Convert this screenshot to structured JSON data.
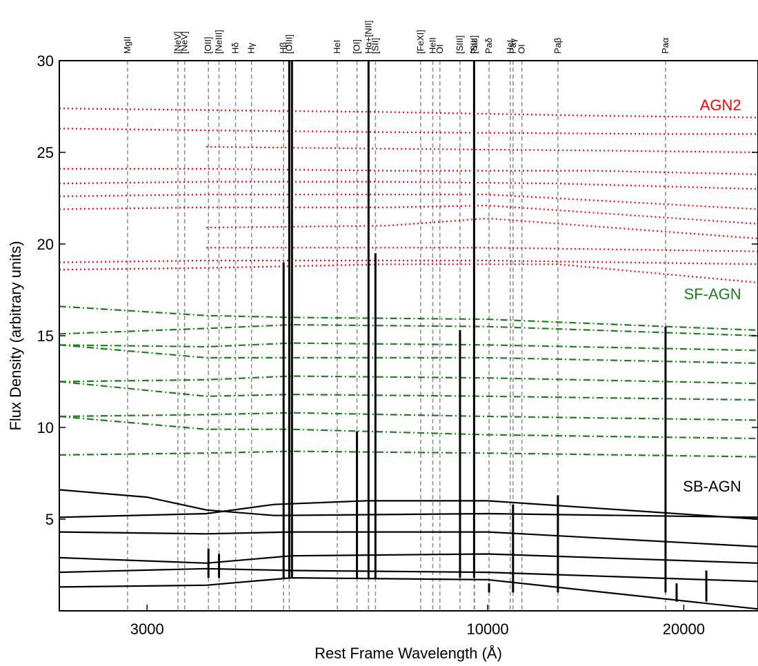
{
  "chart_data": {
    "type": "line",
    "xlabel": "Rest Frame Wavelength (Å)",
    "ylabel": "Flux Density (arbitrary units)",
    "xscale": "log",
    "xlim": [
      2200,
      26000
    ],
    "ylim": [
      0,
      30
    ],
    "xticks": [
      3000,
      10000,
      20000
    ],
    "xtick_labels": [
      "3000",
      "10000",
      "20000"
    ],
    "yticks": [
      5,
      10,
      15,
      20,
      25,
      30
    ],
    "ytick_labels": [
      "5",
      "10",
      "15",
      "20",
      "25",
      "30"
    ],
    "line_markers": [
      {
        "label": "MgII",
        "x": 2800
      },
      {
        "label": "[NeV]",
        "x": 3346
      },
      {
        "label": "[NeV]",
        "x": 3426
      },
      {
        "label": "[OII]",
        "x": 3727
      },
      {
        "label": "[NeIII]",
        "x": 3869
      },
      {
        "label": "Hδ",
        "x": 4102
      },
      {
        "label": "Hγ",
        "x": 4340
      },
      {
        "label": "Hβ",
        "x": 4861
      },
      {
        "label": "[OIII]",
        "x": 4959
      },
      {
        "label": "HeI",
        "x": 5876
      },
      {
        "label": "[OI]",
        "x": 6300
      },
      {
        "label": "Hα+[NII]",
        "x": 6563
      },
      {
        "label": "[SII]",
        "x": 6725
      },
      {
        "label": "[FeXI]",
        "x": 7892
      },
      {
        "label": "HeII",
        "x": 8237
      },
      {
        "label": "OI",
        "x": 8446
      },
      {
        "label": "[SIII]",
        "x": 9069
      },
      {
        "label": "[SIII]",
        "x": 9531
      },
      {
        "label": "Paε",
        "x": 9546
      },
      {
        "label": "Paδ",
        "x": 10049
      },
      {
        "label": "HeI",
        "x": 10830
      },
      {
        "label": "Paγ",
        "x": 10938
      },
      {
        "label": "OI",
        "x": 11287
      },
      {
        "label": "Paβ",
        "x": 12818
      },
      {
        "label": "Paα",
        "x": 18751
      }
    ],
    "marker_style": {
      "color": "#8c8c8c",
      "dash": "dashed"
    },
    "groups": [
      {
        "name": "AGN2",
        "color": "#ff0000",
        "linestyle": "dotted",
        "x_start": 2200,
        "x_end": 26000,
        "series": [
          {
            "x": [
              2200,
              3700,
              7000,
              14500,
              26000
            ],
            "y": [
              27.4,
              27.3,
              27.2,
              27.0,
              26.9
            ]
          },
          {
            "x": [
              2200,
              3700,
              7000,
              18900,
              26000
            ],
            "y": [
              26.3,
              26.2,
              26.1,
              26.0,
              26.0
            ]
          },
          {
            "x": [
              3700,
              7000,
              14500,
              26000
            ],
            "y": [
              25.3,
              25.2,
              25.1,
              25.0
            ]
          },
          {
            "x": [
              2200,
              3700,
              7000,
              14500,
              26000
            ],
            "y": [
              24.1,
              24.1,
              24.0,
              24.0,
              23.8
            ]
          },
          {
            "x": [
              2200,
              3700,
              7000,
              12800,
              26000
            ],
            "y": [
              23.3,
              23.4,
              23.4,
              23.3,
              23.0
            ]
          },
          {
            "x": [
              2200,
              3700,
              7000,
              10000,
              26000
            ],
            "y": [
              22.6,
              22.7,
              22.7,
              22.7,
              21.9
            ]
          },
          {
            "x": [
              2200,
              3700,
              7000,
              10000,
              26000
            ],
            "y": [
              21.9,
              22.0,
              22.0,
              22.1,
              21.1
            ]
          },
          {
            "x": [
              3700,
              7000,
              10000,
              26000
            ],
            "y": [
              20.9,
              21.0,
              21.4,
              20.3
            ]
          },
          {
            "x": [
              3700,
              7000,
              10000,
              26000
            ],
            "y": [
              19.8,
              19.8,
              19.8,
              19.6
            ]
          },
          {
            "x": [
              2200,
              3700,
              7000,
              10000,
              26000
            ],
            "y": [
              19.0,
              19.1,
              19.1,
              19.1,
              18.9
            ]
          },
          {
            "x": [
              2200,
              3700,
              7000,
              12800,
              26000
            ],
            "y": [
              18.6,
              18.7,
              18.9,
              18.9,
              17.9
            ]
          }
        ]
      },
      {
        "name": "SF-AGN",
        "color": "#1a801a",
        "linestyle": "dashdot",
        "series": [
          {
            "x": [
              2200,
              3700,
              5000,
              10000,
              26000
            ],
            "y": [
              16.6,
              16.1,
              16.0,
              15.9,
              15.3
            ]
          },
          {
            "x": [
              2200,
              3700,
              5000,
              10000,
              26000
            ],
            "y": [
              15.1,
              15.4,
              15.6,
              15.5,
              15.0
            ]
          },
          {
            "x": [
              2200,
              3700,
              5000,
              10000,
              26000
            ],
            "y": [
              14.5,
              14.4,
              14.6,
              14.5,
              14.2
            ]
          },
          {
            "x": [
              2200,
              3700,
              5000,
              10000,
              26000
            ],
            "y": [
              14.5,
              13.8,
              13.8,
              13.8,
              13.5
            ]
          },
          {
            "x": [
              2200,
              3700,
              5000,
              10000,
              26000
            ],
            "y": [
              12.5,
              12.6,
              12.8,
              12.7,
              12.4
            ]
          },
          {
            "x": [
              2200,
              3700,
              5000,
              10000,
              26000
            ],
            "y": [
              12.5,
              11.7,
              11.8,
              11.7,
              11.5
            ]
          },
          {
            "x": [
              2200,
              3700,
              5000,
              10000,
              26000
            ],
            "y": [
              10.6,
              10.7,
              10.8,
              10.6,
              10.4
            ]
          },
          {
            "x": [
              2200,
              3700,
              5000,
              10000,
              26000
            ],
            "y": [
              10.6,
              9.9,
              9.9,
              9.6,
              9.4
            ]
          },
          {
            "x": [
              2200,
              3700,
              5000,
              10000,
              26000
            ],
            "y": [
              8.5,
              8.6,
              8.7,
              8.6,
              8.4
            ]
          }
        ]
      },
      {
        "name": "SB-AGN",
        "color": "#000000",
        "linestyle": "solid",
        "series": [
          {
            "x": [
              2200,
              3000,
              3700,
              4700,
              10000,
              26000
            ],
            "y": [
              6.6,
              6.2,
              5.5,
              5.2,
              5.3,
              5.1
            ]
          },
          {
            "x": [
              2200,
              3700,
              4700,
              6500,
              10000,
              26000
            ],
            "y": [
              5.1,
              5.3,
              5.8,
              6.0,
              6.0,
              5.0
            ]
          },
          {
            "x": [
              2200,
              3700,
              5000,
              10000,
              26000
            ],
            "y": [
              4.3,
              4.2,
              4.3,
              4.3,
              3.5
            ]
          },
          {
            "x": [
              2200,
              3700,
              5000,
              10000,
              26000
            ],
            "y": [
              2.9,
              2.6,
              3.0,
              3.1,
              2.6
            ]
          },
          {
            "x": [
              2200,
              3700,
              5000,
              10000,
              26000
            ],
            "y": [
              2.1,
              2.3,
              2.2,
              2.1,
              1.6
            ]
          },
          {
            "x": [
              2200,
              3700,
              5000,
              10000,
              26000
            ],
            "y": [
              1.3,
              1.4,
              1.8,
              1.7,
              0.1
            ]
          }
        ],
        "spikes": [
          {
            "x": 3727,
            "y": 3.4,
            "base": 1.8
          },
          {
            "x": 3869,
            "y": 3.1,
            "base": 1.8
          },
          {
            "x": 4861,
            "y": 19.0,
            "base": 1.8
          },
          {
            "x": 4959,
            "y": 30.0,
            "base": 1.8
          },
          {
            "x": 5007,
            "y": 30.0,
            "base": 1.8
          },
          {
            "x": 6300,
            "y": 9.8,
            "base": 1.8
          },
          {
            "x": 6563,
            "y": 30.0,
            "base": 1.8
          },
          {
            "x": 6725,
            "y": 19.5,
            "base": 1.8
          },
          {
            "x": 9069,
            "y": 15.3,
            "base": 1.8
          },
          {
            "x": 9531,
            "y": 30.0,
            "base": 1.8
          },
          {
            "x": 10049,
            "y": 1.5,
            "base": 1.0
          },
          {
            "x": 10938,
            "y": 5.8,
            "base": 1.0
          },
          {
            "x": 12818,
            "y": 6.3,
            "base": 1.0
          },
          {
            "x": 18751,
            "y": 15.5,
            "base": 1.0
          },
          {
            "x": 19500,
            "y": 1.5,
            "base": 0.5
          },
          {
            "x": 21660,
            "y": 2.2,
            "base": 0.5
          }
        ]
      }
    ],
    "legend_labels": [
      {
        "text": "AGN2",
        "color": "#ff0000",
        "x": 24500,
        "y": 27.3
      },
      {
        "text": "SF-AGN",
        "color": "#1a801a",
        "x": 24500,
        "y": 17.0
      },
      {
        "text": "SB-AGN",
        "color": "#000000",
        "x": 24500,
        "y": 6.5
      }
    ]
  }
}
